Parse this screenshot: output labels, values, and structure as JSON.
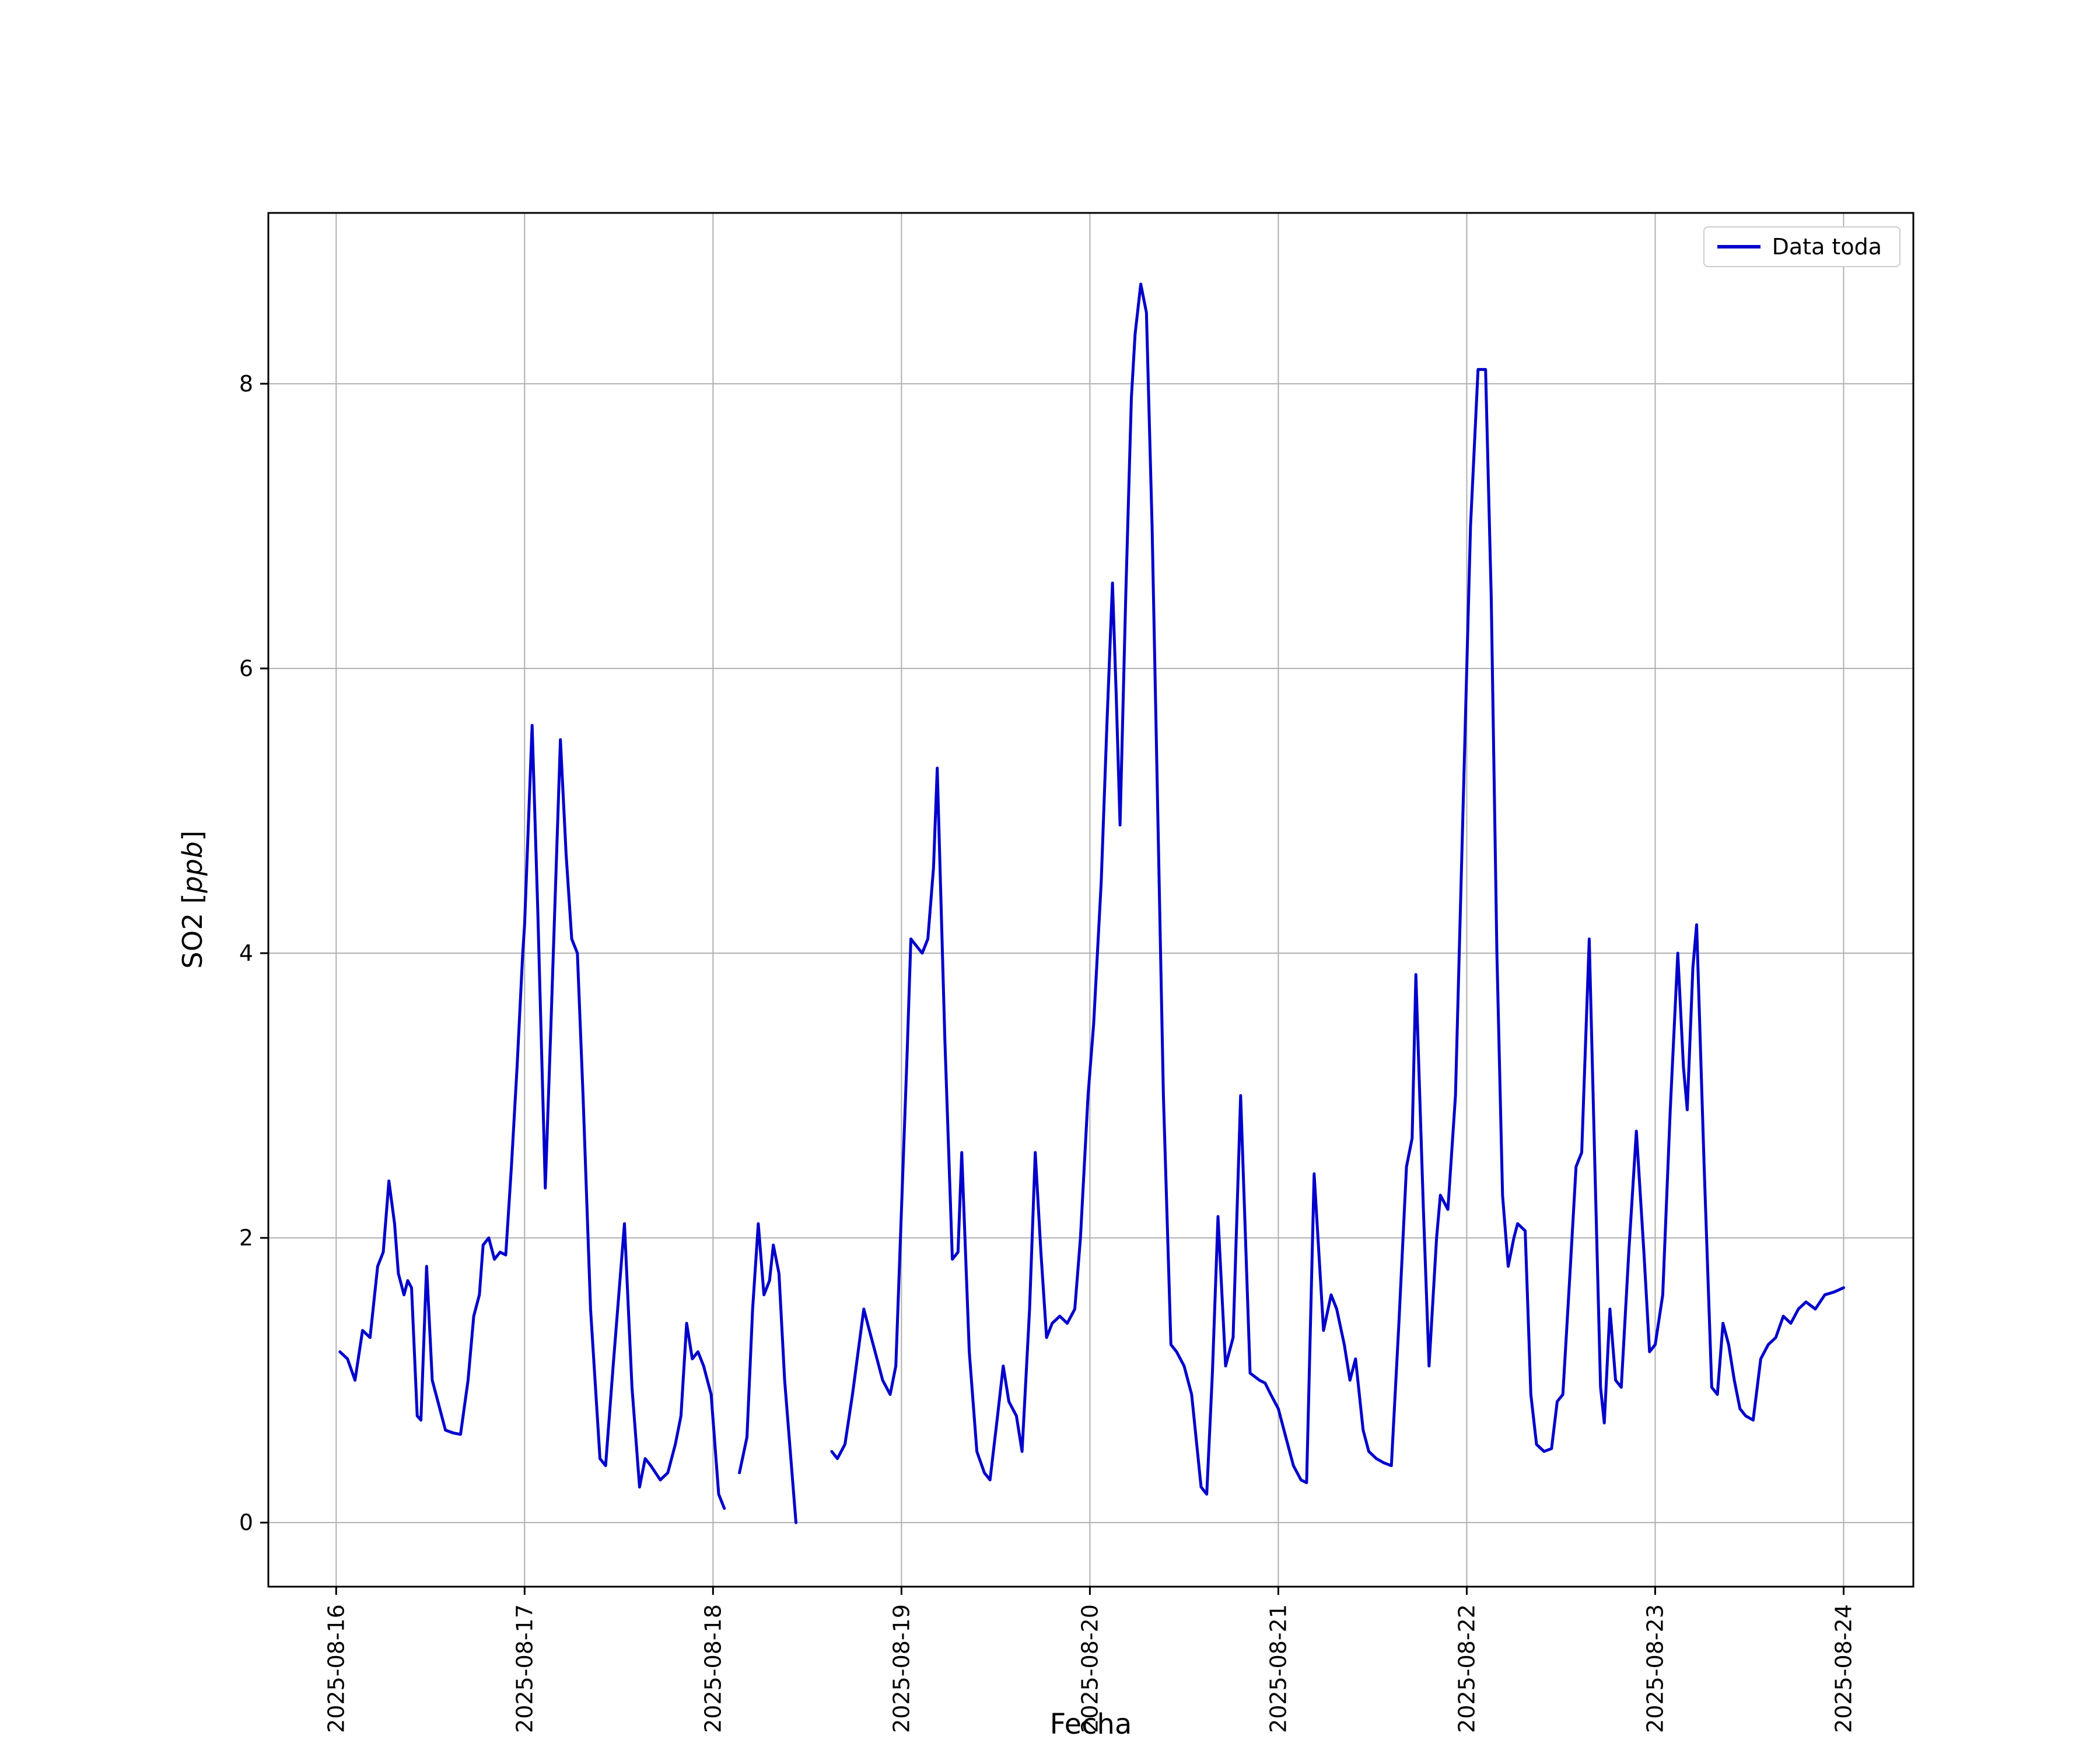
{
  "figure": {
    "background": "#ffffff"
  },
  "chart_data": {
    "type": "line",
    "title": "",
    "xlabel": "Fecha",
    "ylabel": "SO2 [ppb]",
    "ylabel_parts": [
      "SO2 [",
      "ppb",
      "]"
    ],
    "x_unit": "fractional days since 2025-08-16 00:00",
    "grid": true,
    "grid_color": "#b0b0b0",
    "axes_color": "#000000",
    "line_color": "#0000cd",
    "legend": {
      "position": "upper right",
      "entries": [
        "Data toda"
      ]
    },
    "xlim_days": [
      -0.36,
      8.37
    ],
    "ylim": [
      -0.45,
      9.2
    ],
    "yticks": [
      0,
      2,
      4,
      6,
      8
    ],
    "xticks": {
      "positions_days": [
        0,
        1,
        2,
        3,
        4,
        5,
        6,
        7,
        8
      ],
      "labels": [
        "2025-08-16",
        "2025-08-17",
        "2025-08-18",
        "2025-08-19",
        "2025-08-20",
        "2025-08-21",
        "2025-08-22",
        "2025-08-23",
        "2025-08-24"
      ]
    },
    "series": [
      {
        "name": "Data toda",
        "color": "#0000cd",
        "segments": [
          [
            [
              0.02,
              1.2
            ],
            [
              0.06,
              1.15
            ],
            [
              0.1,
              1.0
            ],
            [
              0.14,
              1.35
            ],
            [
              0.18,
              1.3
            ],
            [
              0.22,
              1.8
            ],
            [
              0.25,
              1.9
            ],
            [
              0.28,
              2.4
            ],
            [
              0.31,
              2.1
            ],
            [
              0.33,
              1.75
            ],
            [
              0.36,
              1.6
            ],
            [
              0.38,
              1.7
            ],
            [
              0.4,
              1.65
            ],
            [
              0.43,
              0.75
            ],
            [
              0.45,
              0.72
            ],
            [
              0.48,
              1.8
            ],
            [
              0.51,
              1.0
            ],
            [
              0.54,
              0.85
            ],
            [
              0.58,
              0.65
            ],
            [
              0.62,
              0.63
            ],
            [
              0.66,
              0.62
            ],
            [
              0.7,
              1.0
            ],
            [
              0.73,
              1.45
            ],
            [
              0.76,
              1.6
            ],
            [
              0.78,
              1.95
            ],
            [
              0.81,
              2.0
            ],
            [
              0.84,
              1.85
            ],
            [
              0.87,
              1.9
            ],
            [
              0.9,
              1.88
            ],
            [
              0.93,
              2.5
            ],
            [
              0.96,
              3.2
            ],
            [
              0.99,
              4.0
            ],
            [
              1.0,
              4.2
            ],
            [
              1.04,
              5.6
            ],
            [
              1.07,
              4.3
            ],
            [
              1.11,
              2.35
            ],
            [
              1.14,
              3.5
            ],
            [
              1.19,
              5.5
            ],
            [
              1.22,
              4.7
            ],
            [
              1.25,
              4.1
            ],
            [
              1.28,
              4.0
            ],
            [
              1.31,
              3.0
            ],
            [
              1.35,
              1.5
            ],
            [
              1.4,
              0.45
            ],
            [
              1.43,
              0.4
            ],
            [
              1.47,
              1.1
            ],
            [
              1.53,
              2.1
            ],
            [
              1.57,
              0.95
            ],
            [
              1.61,
              0.25
            ],
            [
              1.64,
              0.45
            ],
            [
              1.67,
              0.4
            ],
            [
              1.72,
              0.3
            ],
            [
              1.76,
              0.35
            ],
            [
              1.8,
              0.55
            ],
            [
              1.83,
              0.75
            ],
            [
              1.86,
              1.4
            ],
            [
              1.89,
              1.15
            ],
            [
              1.92,
              1.2
            ],
            [
              1.95,
              1.1
            ],
            [
              1.99,
              0.9
            ],
            [
              2.03,
              0.2
            ],
            [
              2.06,
              0.1
            ]
          ],
          [
            [
              2.14,
              0.35
            ],
            [
              2.18,
              0.6
            ],
            [
              2.21,
              1.5
            ],
            [
              2.24,
              2.1
            ],
            [
              2.27,
              1.6
            ],
            [
              2.3,
              1.7
            ],
            [
              2.32,
              1.95
            ],
            [
              2.35,
              1.75
            ],
            [
              2.38,
              1.0
            ],
            [
              2.41,
              0.5
            ],
            [
              2.44,
              0.0
            ]
          ],
          [
            [
              2.63,
              0.5
            ],
            [
              2.66,
              0.45
            ],
            [
              2.7,
              0.55
            ],
            [
              2.74,
              0.9
            ],
            [
              2.78,
              1.3
            ],
            [
              2.8,
              1.5
            ],
            [
              2.83,
              1.35
            ],
            [
              2.87,
              1.15
            ],
            [
              2.9,
              1.0
            ],
            [
              2.94,
              0.9
            ],
            [
              2.97,
              1.1
            ],
            [
              3.0,
              2.2
            ],
            [
              3.03,
              3.3
            ],
            [
              3.05,
              4.1
            ],
            [
              3.08,
              4.05
            ],
            [
              3.11,
              4.0
            ],
            [
              3.14,
              4.1
            ],
            [
              3.17,
              4.6
            ],
            [
              3.19,
              5.3
            ],
            [
              3.23,
              3.4
            ],
            [
              3.27,
              1.85
            ],
            [
              3.3,
              1.9
            ],
            [
              3.32,
              2.6
            ],
            [
              3.36,
              1.2
            ],
            [
              3.4,
              0.5
            ],
            [
              3.44,
              0.35
            ],
            [
              3.47,
              0.3
            ],
            [
              3.51,
              0.75
            ],
            [
              3.54,
              1.1
            ],
            [
              3.57,
              0.85
            ],
            [
              3.61,
              0.75
            ],
            [
              3.64,
              0.5
            ],
            [
              3.68,
              1.5
            ],
            [
              3.71,
              2.6
            ],
            [
              3.74,
              1.9
            ],
            [
              3.77,
              1.3
            ],
            [
              3.8,
              1.4
            ],
            [
              3.84,
              1.45
            ],
            [
              3.88,
              1.4
            ],
            [
              3.92,
              1.5
            ],
            [
              3.95,
              2.0
            ],
            [
              3.99,
              3.0
            ],
            [
              4.02,
              3.5
            ],
            [
              4.06,
              4.5
            ],
            [
              4.09,
              5.6
            ],
            [
              4.12,
              6.6
            ],
            [
              4.14,
              5.8
            ],
            [
              4.16,
              4.9
            ],
            [
              4.19,
              6.5
            ],
            [
              4.22,
              7.9
            ],
            [
              4.24,
              8.35
            ],
            [
              4.27,
              8.7
            ],
            [
              4.3,
              8.5
            ],
            [
              4.33,
              7.0
            ],
            [
              4.36,
              5.0
            ],
            [
              4.39,
              3.0
            ],
            [
              4.43,
              1.25
            ],
            [
              4.46,
              1.2
            ],
            [
              4.5,
              1.1
            ],
            [
              4.54,
              0.9
            ],
            [
              4.59,
              0.25
            ],
            [
              4.62,
              0.2
            ],
            [
              4.65,
              1.05
            ],
            [
              4.68,
              2.15
            ],
            [
              4.72,
              1.1
            ],
            [
              4.76,
              1.3
            ],
            [
              4.8,
              3.0
            ],
            [
              4.85,
              1.05
            ],
            [
              4.9,
              1.0
            ],
            [
              4.93,
              0.98
            ],
            [
              4.96,
              0.9
            ],
            [
              5.0,
              0.8
            ],
            [
              5.04,
              0.6
            ],
            [
              5.08,
              0.4
            ],
            [
              5.12,
              0.3
            ],
            [
              5.15,
              0.28
            ],
            [
              5.19,
              2.45
            ],
            [
              5.24,
              1.35
            ],
            [
              5.28,
              1.6
            ],
            [
              5.31,
              1.5
            ],
            [
              5.35,
              1.25
            ],
            [
              5.38,
              1.0
            ],
            [
              5.41,
              1.15
            ],
            [
              5.45,
              0.65
            ],
            [
              5.48,
              0.5
            ],
            [
              5.52,
              0.45
            ],
            [
              5.56,
              0.42
            ],
            [
              5.6,
              0.4
            ],
            [
              5.64,
              1.4
            ],
            [
              5.68,
              2.5
            ],
            [
              5.71,
              2.7
            ],
            [
              5.73,
              3.85
            ],
            [
              5.77,
              2.2
            ],
            [
              5.8,
              1.1
            ],
            [
              5.84,
              2.0
            ],
            [
              5.86,
              2.3
            ],
            [
              5.9,
              2.2
            ],
            [
              5.94,
              3.0
            ],
            [
              5.98,
              5.0
            ],
            [
              6.02,
              7.0
            ],
            [
              6.06,
              8.1
            ],
            [
              6.1,
              8.1
            ],
            [
              6.13,
              6.5
            ],
            [
              6.16,
              4.0
            ],
            [
              6.19,
              2.3
            ],
            [
              6.22,
              1.8
            ],
            [
              6.25,
              2.0
            ],
            [
              6.27,
              2.1
            ],
            [
              6.31,
              2.05
            ],
            [
              6.34,
              0.9
            ],
            [
              6.37,
              0.55
            ],
            [
              6.41,
              0.5
            ],
            [
              6.45,
              0.52
            ],
            [
              6.48,
              0.85
            ],
            [
              6.51,
              0.9
            ],
            [
              6.55,
              1.8
            ],
            [
              6.58,
              2.5
            ],
            [
              6.61,
              2.6
            ],
            [
              6.65,
              4.1
            ],
            [
              6.68,
              2.5
            ],
            [
              6.71,
              0.95
            ],
            [
              6.73,
              0.7
            ],
            [
              6.76,
              1.5
            ],
            [
              6.79,
              1.0
            ],
            [
              6.82,
              0.95
            ],
            [
              6.86,
              1.9
            ],
            [
              6.9,
              2.75
            ],
            [
              6.94,
              1.9
            ],
            [
              6.97,
              1.2
            ],
            [
              7.0,
              1.25
            ],
            [
              7.04,
              1.6
            ],
            [
              7.08,
              2.9
            ],
            [
              7.12,
              4.0
            ],
            [
              7.15,
              3.2
            ],
            [
              7.17,
              2.9
            ],
            [
              7.2,
              3.9
            ],
            [
              7.22,
              4.2
            ],
            [
              7.26,
              2.5
            ],
            [
              7.3,
              0.95
            ],
            [
              7.33,
              0.9
            ],
            [
              7.36,
              1.4
            ],
            [
              7.39,
              1.25
            ],
            [
              7.42,
              1.0
            ],
            [
              7.45,
              0.8
            ],
            [
              7.48,
              0.75
            ],
            [
              7.52,
              0.72
            ],
            [
              7.56,
              1.15
            ],
            [
              7.6,
              1.25
            ],
            [
              7.64,
              1.3
            ],
            [
              7.68,
              1.45
            ],
            [
              7.72,
              1.4
            ],
            [
              7.76,
              1.5
            ],
            [
              7.8,
              1.55
            ],
            [
              7.85,
              1.5
            ],
            [
              7.9,
              1.6
            ],
            [
              7.95,
              1.62
            ],
            [
              8.0,
              1.65
            ]
          ]
        ]
      }
    ]
  }
}
